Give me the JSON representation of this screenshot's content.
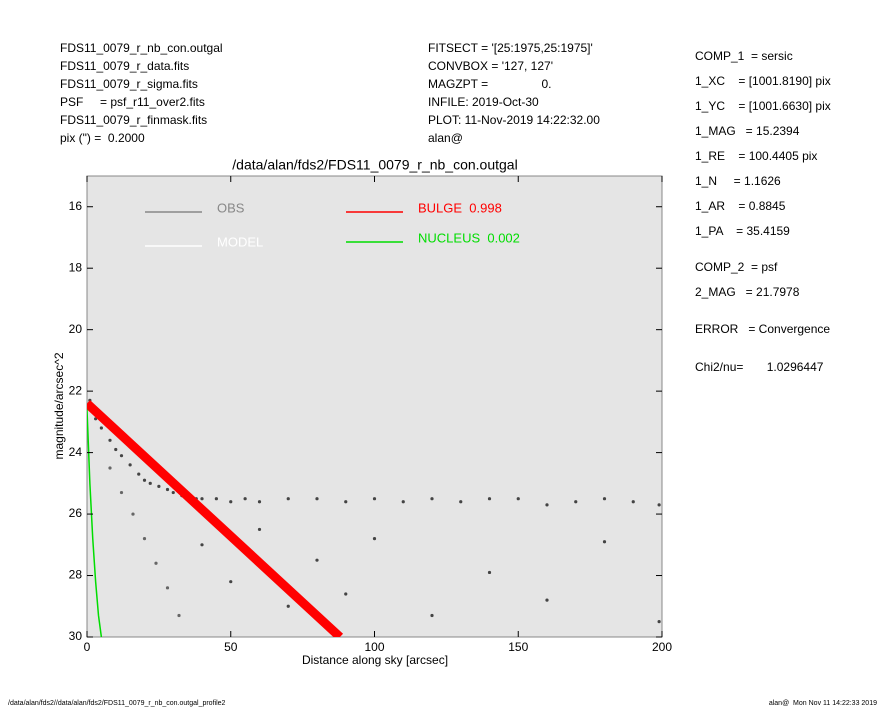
{
  "header": {
    "left": [
      "FDS11_0079_r_nb_con.outgal",
      "FDS11_0079_r_data.fits",
      "FDS11_0079_r_sigma.fits",
      "PSF     = psf_r11_over2.fits",
      "FDS11_0079_r_finmask.fits",
      "pix (\") =  0.2000"
    ],
    "middle": [
      "FITSECT = '[25:1975,25:1975]'",
      "CONVBOX = '127, 127'",
      "MAGZPT =                0.",
      "INFILE: 2019-Oct-30",
      "PLOT: 11-Nov-2019 14:22:32.00",
      "alan@"
    ],
    "right": [
      "COMP_1  = sersic",
      "1_XC    = [1001.8190] pix",
      "1_YC    = [1001.6630] pix",
      "1_MAG   = 15.2394",
      "1_RE    = 100.4405 pix",
      "1_N     = 1.1626",
      "1_AR    = 0.8845",
      "1_PA    = 35.4159",
      "COMP_2  = psf",
      "2_MAG   = 21.7978",
      "ERROR   = Convergence",
      "Chi2/nu=       1.0296447"
    ]
  },
  "footer": {
    "left": "/data/alan/fds2//data/alan/fds2/FDS11_0079_r_nb_con.outgal_profile2",
    "right": "alan@  Mon Nov 11 14:22:33 2019"
  },
  "chart_data": {
    "type": "scatter",
    "title": "/data/alan/fds2/FDS11_0079_r_nb_con.outgal",
    "xlabel": "Distance along sky [arcsec]",
    "ylabel": "magnitude/arcsec^2",
    "xlim": [
      0,
      200
    ],
    "xticks": [
      0,
      50,
      100,
      150,
      200
    ],
    "ylim": [
      15,
      30
    ],
    "yticks": [
      16,
      18,
      20,
      22,
      24,
      26,
      28,
      30
    ],
    "y_inverted": true,
    "series": [
      {
        "name": "OBS",
        "color": "#888888",
        "type": "scatter",
        "x": [
          1,
          3,
          5,
          8,
          10,
          12,
          15,
          18,
          20,
          22,
          25,
          28,
          30,
          33,
          35,
          38,
          40,
          45,
          50,
          55,
          60,
          70,
          80,
          90,
          100,
          110,
          120,
          130,
          140,
          150,
          160,
          170,
          180,
          190,
          199,
          8,
          12,
          16,
          20,
          24,
          28,
          32,
          40,
          50,
          60,
          70,
          80,
          90,
          100,
          120,
          140,
          160,
          180,
          199
        ],
        "values": [
          22.3,
          22.9,
          23.2,
          23.6,
          23.9,
          24.1,
          24.4,
          24.7,
          24.9,
          25.0,
          25.1,
          25.2,
          25.3,
          25.4,
          25.4,
          25.5,
          25.5,
          25.5,
          25.6,
          25.5,
          25.6,
          25.5,
          25.5,
          25.6,
          25.5,
          25.6,
          25.5,
          25.6,
          25.5,
          25.5,
          25.7,
          25.6,
          25.5,
          25.6,
          25.7,
          24.5,
          25.3,
          26.0,
          26.8,
          27.6,
          28.4,
          29.3,
          27.0,
          28.2,
          26.5,
          29.0,
          27.5,
          28.6,
          26.8,
          29.3,
          27.9,
          28.8,
          26.9,
          29.5
        ]
      },
      {
        "name": "MODEL",
        "color": "#ffffff",
        "type": "line",
        "x": [
          0,
          88
        ],
        "values": [
          22.4,
          30
        ]
      },
      {
        "name": "BULGE  0.998",
        "color": "#ff0000",
        "type": "line",
        "x": [
          0,
          88
        ],
        "values": [
          22.4,
          30
        ]
      },
      {
        "name": "NUCLEUS  0.002",
        "color": "#00dd00",
        "type": "line",
        "x": [
          0,
          1,
          2,
          3,
          4,
          5
        ],
        "values": [
          22.6,
          25,
          26.8,
          28.2,
          29.3,
          30
        ]
      }
    ]
  }
}
